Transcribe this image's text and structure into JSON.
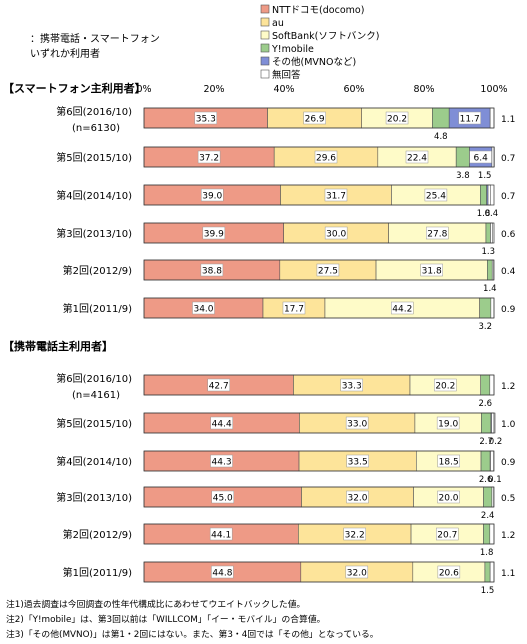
{
  "header_note": [
    "：携帯電話・スマートフォン",
    "いずれか利用者"
  ],
  "legend": [
    {
      "label": "NTTドコモ(docomo)",
      "color": "#ee9a86"
    },
    {
      "label": "au",
      "color": "#fde49a"
    },
    {
      "label": "SoftBank(ソフトバンク)",
      "color": "#fefbc8"
    },
    {
      "label": "Y!mobile",
      "color": "#9ccc8c"
    },
    {
      "label": "その他(MVNOなど)",
      "color": "#7f8ed6"
    },
    {
      "label": "無回答",
      "color": "#ffffff"
    }
  ],
  "footnotes": [
    "注1)過去調査は今回調査の性年代構成比にあわせてウエイトバックした値。",
    "注2)「Y!mobile」は、第3回以前は「WILLCOM」「イー・モバイル」の合算値。",
    "注3)「その他(MVNO)」は第1・2回にはない。また、第3・4回では「その他」となっている。"
  ],
  "chart_data": {
    "type": "stacked-bar-horizontal",
    "axis_ticks": [
      "0%",
      "20%",
      "40%",
      "60%",
      "80%",
      "100%"
    ],
    "xlim": [
      0,
      100
    ],
    "series_names": [
      "NTTドコモ(docomo)",
      "au",
      "SoftBank(ソフトバンク)",
      "Y!mobile",
      "その他(MVNOなど)",
      "無回答"
    ],
    "groups": [
      {
        "title": "【スマートフォン主利用者】",
        "rows": [
          {
            "label": "第6回(2016/10)",
            "sublabel": "(n=6130)",
            "values": [
              35.3,
              26.9,
              20.2,
              4.8,
              11.7,
              1.1
            ],
            "inside_labels": [
              "35.3",
              "26.9",
              "20.2",
              "",
              "11.7",
              ""
            ],
            "end_label": "1.1",
            "below_labels": [
              "4.8"
            ]
          },
          {
            "label": "第5回(2015/10)",
            "values": [
              37.2,
              29.6,
              22.4,
              3.8,
              6.4,
              0.7
            ],
            "inside_labels": [
              "37.2",
              "29.6",
              "22.4",
              "",
              "6.4",
              ""
            ],
            "end_label": "0.7",
            "below_labels": [
              "3.8",
              "1.5"
            ]
          },
          {
            "label": "第4回(2014/10)",
            "values": [
              39.0,
              31.7,
              25.4,
              1.8,
              0.4,
              0.7
            ],
            "inside_labels": [
              "39.0",
              "31.7",
              "25.4",
              "",
              "",
              ""
            ],
            "end_label": "0.7",
            "below_labels": [
              "1.8",
              "0.4"
            ]
          },
          {
            "label": "第3回(2013/10)",
            "values": [
              39.9,
              30.0,
              27.8,
              1.3,
              0.0,
              0.6
            ],
            "inside_labels": [
              "39.9",
              "30.0",
              "27.8",
              "",
              "",
              ""
            ],
            "end_label": "0.6",
            "below_labels": [
              "1.3"
            ]
          },
          {
            "label": "第2回(2012/9)",
            "values": [
              38.8,
              27.5,
              31.8,
              1.4,
              0.0,
              0.4
            ],
            "inside_labels": [
              "38.8",
              "27.5",
              "31.8",
              "",
              "",
              ""
            ],
            "end_label": "0.4",
            "below_labels": [
              "1.4"
            ]
          },
          {
            "label": "第1回(2011/9)",
            "values": [
              34.0,
              17.7,
              44.2,
              3.2,
              0.0,
              0.9
            ],
            "inside_labels": [
              "34.0",
              "17.7",
              "44.2",
              "",
              "",
              ""
            ],
            "end_label": "0.9",
            "below_labels": [
              "3.2"
            ]
          }
        ]
      },
      {
        "title": "【携帯電話主利用者】",
        "rows": [
          {
            "label": "第6回(2016/10)",
            "sublabel": "(n=4161)",
            "values": [
              42.7,
              33.3,
              20.2,
              2.6,
              0.0,
              1.2
            ],
            "inside_labels": [
              "42.7",
              "33.3",
              "20.2",
              "",
              "",
              ""
            ],
            "end_label": "1.2",
            "below_labels": [
              "2.6"
            ]
          },
          {
            "label": "第5回(2015/10)",
            "values": [
              44.4,
              33.0,
              19.0,
              2.7,
              0.2,
              1.0
            ],
            "inside_labels": [
              "44.4",
              "33.0",
              "19.0",
              "",
              "",
              ""
            ],
            "end_label": "1.0",
            "below_labels": [
              "2.7",
              "0.2"
            ]
          },
          {
            "label": "第4回(2014/10)",
            "values": [
              44.3,
              33.5,
              18.5,
              2.6,
              0.1,
              0.9
            ],
            "inside_labels": [
              "44.3",
              "33.5",
              "18.5",
              "",
              "",
              ""
            ],
            "end_label": "0.9",
            "below_labels": [
              "2.6",
              "0.1"
            ]
          },
          {
            "label": "第3回(2013/10)",
            "values": [
              45.0,
              32.0,
              20.0,
              2.4,
              0.0,
              0.5
            ],
            "inside_labels": [
              "45.0",
              "32.0",
              "20.0",
              "",
              "",
              ""
            ],
            "end_label": "0.5",
            "below_labels": [
              "2.4"
            ]
          },
          {
            "label": "第2回(2012/9)",
            "values": [
              44.1,
              32.2,
              20.7,
              1.8,
              0.0,
              1.2
            ],
            "inside_labels": [
              "44.1",
              "32.2",
              "20.7",
              "",
              "",
              ""
            ],
            "end_label": "1.2",
            "below_labels": [
              "1.8"
            ]
          },
          {
            "label": "第1回(2011/9)",
            "values": [
              44.8,
              32.0,
              20.6,
              1.5,
              0.0,
              1.1
            ],
            "inside_labels": [
              "44.8",
              "32.0",
              "20.6",
              "",
              "",
              ""
            ],
            "end_label": "1.1",
            "below_labels": [
              "1.5"
            ]
          }
        ]
      }
    ]
  }
}
